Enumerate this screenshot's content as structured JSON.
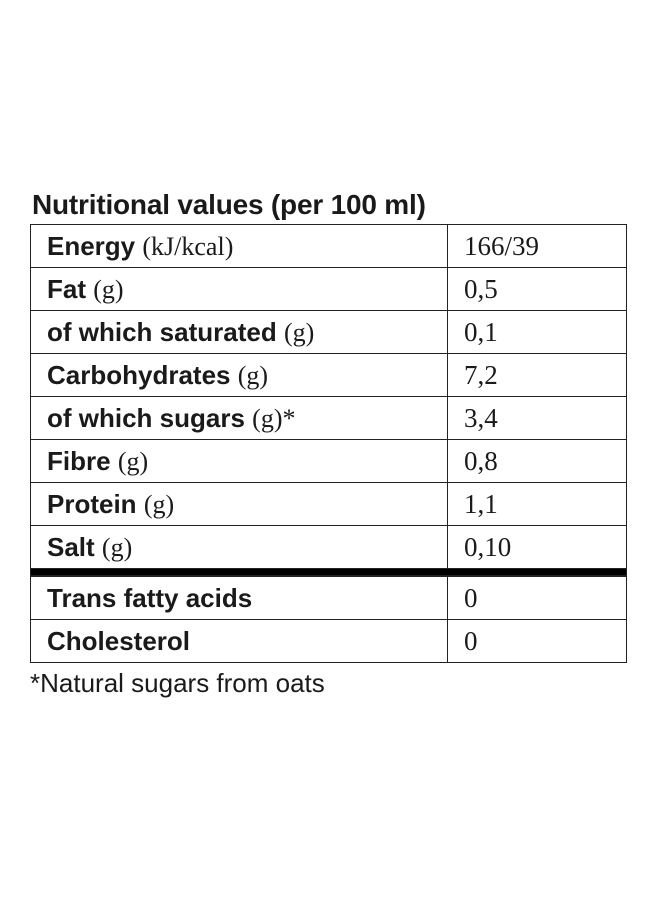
{
  "title": "Nutritional values (per 100 ml)",
  "rows": [
    {
      "name": "Energy",
      "unit": "(kJ/kcal)",
      "suffix": "",
      "value": "166/39"
    },
    {
      "name": "Fat",
      "unit": "(g)",
      "suffix": "",
      "value": "0,5"
    },
    {
      "name": "of which saturated",
      "unit": "(g)",
      "suffix": "",
      "value": "0,1"
    },
    {
      "name": "Carbohydrates",
      "unit": "(g)",
      "suffix": "",
      "value": "7,2"
    },
    {
      "name": "of which sugars",
      "unit": "(g)",
      "suffix": "*",
      "value": "3,4"
    },
    {
      "name": "Fibre",
      "unit": "(g)",
      "suffix": "",
      "value": "0,8"
    },
    {
      "name": "Protein",
      "unit": "(g)",
      "suffix": "",
      "value": "1,1"
    },
    {
      "name": "Salt",
      "unit": "(g)",
      "suffix": "",
      "value": "0,10"
    }
  ],
  "extra_rows": [
    {
      "name": "Trans fatty acids",
      "unit": "",
      "suffix": "",
      "value": "0"
    },
    {
      "name": "Cholesterol",
      "unit": "",
      "suffix": "",
      "value": "0"
    }
  ],
  "footnote": "*Natural sugars from oats"
}
